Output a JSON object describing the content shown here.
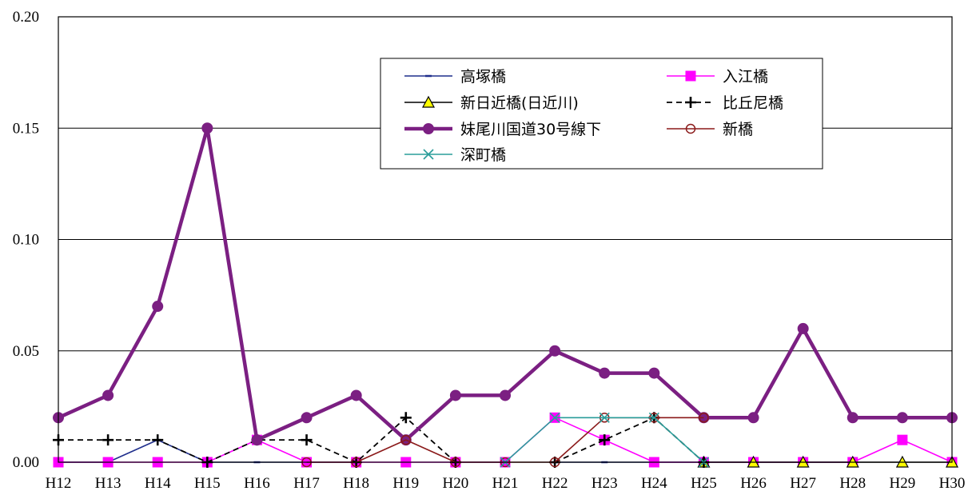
{
  "chart_data": {
    "type": "line",
    "title": "",
    "xlabel": "",
    "ylabel": "",
    "categories": [
      "H12",
      "H13",
      "H14",
      "H15",
      "H16",
      "H17",
      "H18",
      "H19",
      "H20",
      "H21",
      "H22",
      "H23",
      "H24",
      "H25",
      "H26",
      "H27",
      "H28",
      "H29",
      "H30"
    ],
    "ylim": [
      0,
      0.2
    ],
    "yticks": [
      "0.00",
      "0.05",
      "0.10",
      "0.15",
      "0.20"
    ],
    "yticks_values": [
      0,
      0.05,
      0.1,
      0.15,
      0.2
    ],
    "grid": "horizontal",
    "legend_position": "top-right",
    "series": [
      {
        "name": "高塚橋",
        "color": "#1f2e8c",
        "dash": "solid",
        "marker": "dash",
        "values": [
          0,
          0,
          0.01,
          0,
          0,
          0,
          null,
          null,
          null,
          null,
          0,
          0,
          0,
          0,
          null,
          null,
          null,
          null,
          null
        ]
      },
      {
        "name": "入江橋",
        "color": "#ff00ff",
        "dash": "solid",
        "marker": "square",
        "values": [
          0,
          0,
          0,
          0,
          0.01,
          0,
          0,
          0,
          0,
          0,
          0.02,
          0.01,
          0,
          0,
          0,
          0,
          0,
          0.01,
          0
        ]
      },
      {
        "name": "新日近橋(日近川)",
        "color": "#000000",
        "dash": "solid",
        "marker": "triangle",
        "values": [
          null,
          null,
          null,
          null,
          null,
          null,
          null,
          null,
          null,
          null,
          null,
          null,
          null,
          0,
          0,
          0,
          0,
          0,
          0
        ]
      },
      {
        "name": "比丘尼橋",
        "color": "#000000",
        "dash": "dashed",
        "marker": "plus",
        "values": [
          0.01,
          0.01,
          0.01,
          0,
          0.01,
          0.01,
          0,
          0.02,
          0,
          null,
          0,
          0.01,
          0.02,
          0,
          null,
          null,
          null,
          null,
          null
        ]
      },
      {
        "name": "妹尾川国道30号線下",
        "color": "#7b1f82",
        "dash": "thick",
        "marker": "circle",
        "values": [
          0.02,
          0.03,
          0.07,
          0.15,
          0.01,
          0.02,
          0.03,
          0.01,
          0.03,
          0.03,
          0.05,
          0.04,
          0.04,
          0.02,
          0.02,
          0.06,
          0.02,
          0.02,
          0.02
        ]
      },
      {
        "name": "新橋",
        "color": "#8b1a1a",
        "dash": "solid",
        "marker": "open-circle",
        "values": [
          null,
          null,
          null,
          null,
          null,
          0,
          0,
          0.01,
          0,
          0,
          0,
          0.02,
          0.02,
          0.02,
          null,
          null,
          null,
          null,
          null
        ]
      },
      {
        "name": "深町橋",
        "color": "#2a9d9a",
        "dash": "solid",
        "marker": "x",
        "values": [
          null,
          null,
          null,
          null,
          null,
          null,
          null,
          null,
          null,
          0,
          0.02,
          0.02,
          0.02,
          0,
          null,
          null,
          null,
          null,
          null
        ]
      }
    ]
  }
}
